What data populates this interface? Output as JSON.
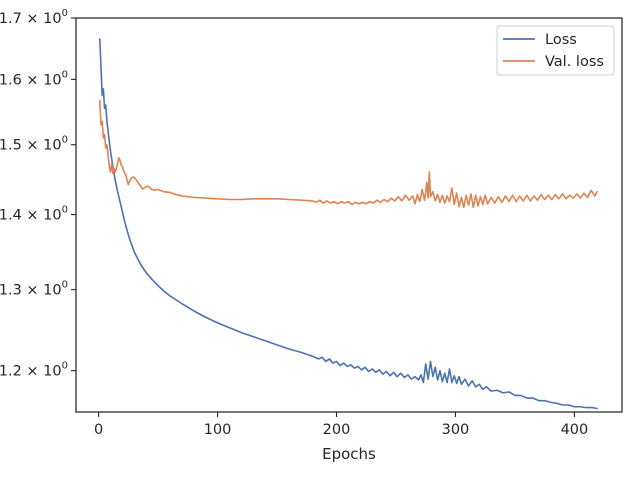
{
  "chart_data": {
    "type": "line",
    "xlabel": "Epochs",
    "ylabel": "",
    "yscale": "log",
    "xlim": [
      -19,
      440
    ],
    "ylim": [
      1.152,
      1.7
    ],
    "grid": false,
    "legend_position": "top-right",
    "x_ticks": [
      0,
      100,
      200,
      300,
      400
    ],
    "y_ticks": [
      1.2,
      1.3,
      1.4,
      1.5,
      1.6,
      1.7
    ],
    "y_tick_labels": [
      {
        "base": "1.2 × 10",
        "exp": "0"
      },
      {
        "base": "1.3 × 10",
        "exp": "0"
      },
      {
        "base": "1.4 × 10",
        "exp": "0"
      },
      {
        "base": "1.5 × 10",
        "exp": "0"
      },
      {
        "base": "1.6 × 10",
        "exp": "0"
      },
      {
        "base": "1.7 × 10",
        "exp": "0"
      }
    ],
    "series": [
      {
        "name": "Loss",
        "color": "#4c72b0",
        "points": [
          [
            1,
            1.665
          ],
          [
            2,
            1.62
          ],
          [
            3,
            1.575
          ],
          [
            4,
            1.585
          ],
          [
            5,
            1.555
          ],
          [
            6,
            1.56
          ],
          [
            7,
            1.535
          ],
          [
            8,
            1.52
          ],
          [
            9,
            1.505
          ],
          [
            10,
            1.49
          ],
          [
            12,
            1.468
          ],
          [
            14,
            1.448
          ],
          [
            16,
            1.432
          ],
          [
            18,
            1.418
          ],
          [
            20,
            1.404
          ],
          [
            22,
            1.39
          ],
          [
            24,
            1.378
          ],
          [
            26,
            1.367
          ],
          [
            28,
            1.358
          ],
          [
            30,
            1.349
          ],
          [
            33,
            1.34
          ],
          [
            36,
            1.331
          ],
          [
            40,
            1.322
          ],
          [
            45,
            1.313
          ],
          [
            50,
            1.305
          ],
          [
            55,
            1.298
          ],
          [
            60,
            1.292
          ],
          [
            70,
            1.282
          ],
          [
            80,
            1.273
          ],
          [
            90,
            1.265
          ],
          [
            100,
            1.258
          ],
          [
            110,
            1.252
          ],
          [
            120,
            1.246
          ],
          [
            130,
            1.241
          ],
          [
            140,
            1.236
          ],
          [
            150,
            1.231
          ],
          [
            160,
            1.226
          ],
          [
            170,
            1.222
          ],
          [
            180,
            1.217
          ],
          [
            185,
            1.214
          ],
          [
            188,
            1.216
          ],
          [
            191,
            1.211
          ],
          [
            194,
            1.214
          ],
          [
            197,
            1.209
          ],
          [
            200,
            1.211
          ],
          [
            203,
            1.206
          ],
          [
            206,
            1.209
          ],
          [
            209,
            1.205
          ],
          [
            212,
            1.207
          ],
          [
            215,
            1.203
          ],
          [
            218,
            1.205
          ],
          [
            221,
            1.201
          ],
          [
            224,
            1.204
          ],
          [
            227,
            1.199
          ],
          [
            230,
            1.202
          ],
          [
            233,
            1.198
          ],
          [
            236,
            1.201
          ],
          [
            239,
            1.196
          ],
          [
            242,
            1.199
          ],
          [
            245,
            1.194
          ],
          [
            248,
            1.198
          ],
          [
            251,
            1.193
          ],
          [
            254,
            1.197
          ],
          [
            257,
            1.192
          ],
          [
            260,
            1.195
          ],
          [
            263,
            1.19
          ],
          [
            266,
            1.193
          ],
          [
            269,
            1.189
          ],
          [
            271,
            1.195
          ],
          [
            273,
            1.186
          ],
          [
            275,
            1.208
          ],
          [
            277,
            1.19
          ],
          [
            279,
            1.211
          ],
          [
            281,
            1.193
          ],
          [
            283,
            1.204
          ],
          [
            285,
            1.189
          ],
          [
            287,
            1.2
          ],
          [
            289,
            1.187
          ],
          [
            291,
            1.197
          ],
          [
            293,
            1.186
          ],
          [
            295,
            1.202
          ],
          [
            297,
            1.186
          ],
          [
            299,
            1.194
          ],
          [
            301,
            1.185
          ],
          [
            303,
            1.193
          ],
          [
            305,
            1.184
          ],
          [
            308,
            1.19
          ],
          [
            311,
            1.182
          ],
          [
            314,
            1.188
          ],
          [
            317,
            1.181
          ],
          [
            320,
            1.184
          ],
          [
            323,
            1.178
          ],
          [
            326,
            1.181
          ],
          [
            330,
            1.176
          ],
          [
            335,
            1.177
          ],
          [
            340,
            1.174
          ],
          [
            345,
            1.175
          ],
          [
            350,
            1.171
          ],
          [
            355,
            1.171
          ],
          [
            360,
            1.168
          ],
          [
            365,
            1.168
          ],
          [
            370,
            1.165
          ],
          [
            375,
            1.165
          ],
          [
            380,
            1.163
          ],
          [
            385,
            1.162
          ],
          [
            390,
            1.16
          ],
          [
            395,
            1.16
          ],
          [
            400,
            1.158
          ],
          [
            405,
            1.158
          ],
          [
            410,
            1.157
          ],
          [
            415,
            1.157
          ],
          [
            419,
            1.156
          ]
        ]
      },
      {
        "name": "Val. loss",
        "color": "#dd8452",
        "points": [
          [
            1,
            1.567
          ],
          [
            2,
            1.53
          ],
          [
            3,
            1.535
          ],
          [
            4,
            1.51
          ],
          [
            5,
            1.515
          ],
          [
            6,
            1.495
          ],
          [
            7,
            1.5
          ],
          [
            8,
            1.485
          ],
          [
            9,
            1.468
          ],
          [
            10,
            1.46
          ],
          [
            11,
            1.472
          ],
          [
            12,
            1.458
          ],
          [
            13,
            1.465
          ],
          [
            14,
            1.46
          ],
          [
            15,
            1.466
          ],
          [
            16,
            1.472
          ],
          [
            17,
            1.481
          ],
          [
            18,
            1.477
          ],
          [
            19,
            1.47
          ],
          [
            20,
            1.468
          ],
          [
            21,
            1.462
          ],
          [
            22,
            1.458
          ],
          [
            23,
            1.455
          ],
          [
            24,
            1.448
          ],
          [
            25,
            1.442
          ],
          [
            26,
            1.447
          ],
          [
            27,
            1.45
          ],
          [
            28,
            1.452
          ],
          [
            29,
            1.453
          ],
          [
            30,
            1.452
          ],
          [
            31,
            1.45
          ],
          [
            32,
            1.448
          ],
          [
            33,
            1.446
          ],
          [
            34,
            1.443
          ],
          [
            35,
            1.441
          ],
          [
            36,
            1.438
          ],
          [
            37,
            1.436
          ],
          [
            38,
            1.437
          ],
          [
            39,
            1.438
          ],
          [
            40,
            1.439
          ],
          [
            41,
            1.44
          ],
          [
            42,
            1.439
          ],
          [
            43,
            1.438
          ],
          [
            44,
            1.436
          ],
          [
            45,
            1.435
          ],
          [
            46,
            1.435
          ],
          [
            47,
            1.434
          ],
          [
            48,
            1.435
          ],
          [
            50,
            1.435
          ],
          [
            55,
            1.432
          ],
          [
            60,
            1.431
          ],
          [
            65,
            1.428
          ],
          [
            70,
            1.426
          ],
          [
            80,
            1.424
          ],
          [
            90,
            1.423
          ],
          [
            100,
            1.422
          ],
          [
            110,
            1.421
          ],
          [
            120,
            1.421
          ],
          [
            130,
            1.422
          ],
          [
            140,
            1.422
          ],
          [
            150,
            1.422
          ],
          [
            160,
            1.421
          ],
          [
            170,
            1.42
          ],
          [
            180,
            1.419
          ],
          [
            183,
            1.417
          ],
          [
            186,
            1.42
          ],
          [
            189,
            1.416
          ],
          [
            192,
            1.419
          ],
          [
            195,
            1.416
          ],
          [
            198,
            1.418
          ],
          [
            201,
            1.415
          ],
          [
            204,
            1.418
          ],
          [
            207,
            1.416
          ],
          [
            210,
            1.418
          ],
          [
            213,
            1.414
          ],
          [
            216,
            1.417
          ],
          [
            219,
            1.415
          ],
          [
            222,
            1.417
          ],
          [
            225,
            1.415
          ],
          [
            228,
            1.418
          ],
          [
            231,
            1.416
          ],
          [
            234,
            1.42
          ],
          [
            237,
            1.417
          ],
          [
            240,
            1.421
          ],
          [
            243,
            1.418
          ],
          [
            246,
            1.423
          ],
          [
            249,
            1.419
          ],
          [
            252,
            1.425
          ],
          [
            255,
            1.419
          ],
          [
            258,
            1.427
          ],
          [
            261,
            1.42
          ],
          [
            264,
            1.426
          ],
          [
            266,
            1.415
          ],
          [
            268,
            1.428
          ],
          [
            270,
            1.418
          ],
          [
            272,
            1.435
          ],
          [
            274,
            1.42
          ],
          [
            276,
            1.445
          ],
          [
            277,
            1.423
          ],
          [
            278,
            1.46
          ],
          [
            279,
            1.425
          ],
          [
            281,
            1.432
          ],
          [
            283,
            1.419
          ],
          [
            285,
            1.428
          ],
          [
            287,
            1.417
          ],
          [
            289,
            1.427
          ],
          [
            291,
            1.416
          ],
          [
            293,
            1.426
          ],
          [
            295,
            1.418
          ],
          [
            297,
            1.437
          ],
          [
            299,
            1.414
          ],
          [
            301,
            1.43
          ],
          [
            303,
            1.411
          ],
          [
            305,
            1.424
          ],
          [
            307,
            1.41
          ],
          [
            309,
            1.427
          ],
          [
            311,
            1.413
          ],
          [
            313,
            1.429
          ],
          [
            315,
            1.41
          ],
          [
            317,
            1.427
          ],
          [
            319,
            1.412
          ],
          [
            321,
            1.425
          ],
          [
            323,
            1.414
          ],
          [
            325,
            1.427
          ],
          [
            327,
            1.415
          ],
          [
            330,
            1.424
          ],
          [
            333,
            1.416
          ],
          [
            336,
            1.425
          ],
          [
            339,
            1.417
          ],
          [
            342,
            1.426
          ],
          [
            345,
            1.418
          ],
          [
            348,
            1.427
          ],
          [
            351,
            1.418
          ],
          [
            354,
            1.426
          ],
          [
            357,
            1.419
          ],
          [
            360,
            1.427
          ],
          [
            363,
            1.419
          ],
          [
            366,
            1.426
          ],
          [
            369,
            1.42
          ],
          [
            372,
            1.428
          ],
          [
            375,
            1.421
          ],
          [
            378,
            1.427
          ],
          [
            381,
            1.421
          ],
          [
            384,
            1.428
          ],
          [
            387,
            1.422
          ],
          [
            390,
            1.429
          ],
          [
            393,
            1.422
          ],
          [
            396,
            1.427
          ],
          [
            399,
            1.423
          ],
          [
            402,
            1.429
          ],
          [
            405,
            1.423
          ],
          [
            408,
            1.43
          ],
          [
            411,
            1.424
          ],
          [
            414,
            1.434
          ],
          [
            417,
            1.426
          ],
          [
            419,
            1.432
          ]
        ]
      }
    ]
  }
}
